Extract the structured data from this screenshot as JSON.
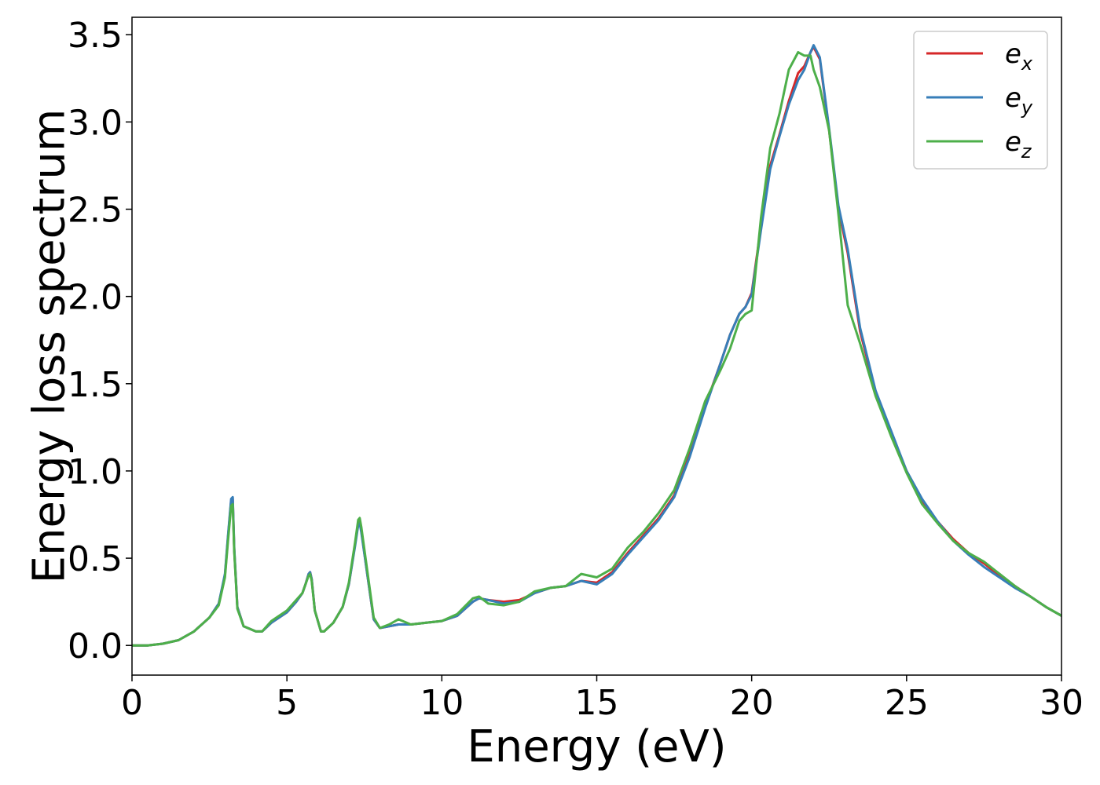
{
  "chart_data": {
    "type": "line",
    "title": "",
    "xlabel": "Energy (eV)",
    "ylabel": "Energy loss spectrum",
    "xlim": [
      0,
      30
    ],
    "ylim": [
      -0.17,
      3.6
    ],
    "xticks": [
      0,
      5,
      10,
      15,
      20,
      25,
      30
    ],
    "yticks": [
      0.0,
      0.5,
      1.0,
      1.5,
      2.0,
      2.5,
      3.0,
      3.5
    ],
    "xtick_labels": [
      "0",
      "5",
      "10",
      "15",
      "20",
      "25",
      "30"
    ],
    "ytick_labels": [
      "0.0",
      "0.5",
      "1.0",
      "1.5",
      "2.0",
      "2.5",
      "3.0",
      "3.5"
    ],
    "grid": false,
    "legend": "top-right",
    "x": [
      0,
      0.5,
      1,
      1.5,
      2,
      2.5,
      2.8,
      3,
      3.1,
      3.2,
      3.25,
      3.3,
      3.4,
      3.6,
      4,
      4.2,
      4.5,
      5,
      5.3,
      5.5,
      5.6,
      5.7,
      5.75,
      5.8,
      5.9,
      6.1,
      6.2,
      6.5,
      6.8,
      7,
      7.2,
      7.3,
      7.35,
      7.4,
      7.6,
      7.8,
      8,
      8.3,
      8.6,
      9,
      9.5,
      10,
      10.5,
      11,
      11.2,
      11.5,
      12,
      12.5,
      13,
      13.5,
      14,
      14.5,
      15,
      15.5,
      16,
      16.5,
      17,
      17.5,
      18,
      18.5,
      19,
      19.3,
      19.6,
      19.8,
      20,
      20.3,
      20.6,
      20.9,
      21.2,
      21.5,
      21.7,
      21.9,
      22,
      22.2,
      22.5,
      22.8,
      23.1,
      23.5,
      24,
      24.5,
      25,
      25.5,
      26,
      26.5,
      27,
      27.5,
      28,
      28.5,
      29,
      29.5,
      30
    ],
    "series": [
      {
        "name": "e_x",
        "label_base": "e",
        "label_sub": "x",
        "color": "#d62728",
        "values": [
          0,
          0,
          0.01,
          0.03,
          0.08,
          0.16,
          0.24,
          0.4,
          0.62,
          0.83,
          0.84,
          0.55,
          0.22,
          0.11,
          0.08,
          0.08,
          0.13,
          0.19,
          0.25,
          0.3,
          0.35,
          0.41,
          0.42,
          0.38,
          0.2,
          0.08,
          0.08,
          0.13,
          0.22,
          0.35,
          0.58,
          0.7,
          0.71,
          0.66,
          0.4,
          0.15,
          0.1,
          0.11,
          0.12,
          0.12,
          0.13,
          0.14,
          0.17,
          0.25,
          0.27,
          0.26,
          0.25,
          0.26,
          0.3,
          0.33,
          0.34,
          0.37,
          0.36,
          0.42,
          0.53,
          0.63,
          0.73,
          0.86,
          1.1,
          1.37,
          1.62,
          1.78,
          1.9,
          1.94,
          2.02,
          2.4,
          2.75,
          2.93,
          3.12,
          3.28,
          3.32,
          3.4,
          3.43,
          3.36,
          2.95,
          2.5,
          2.25,
          1.8,
          1.45,
          1.22,
          1.0,
          0.83,
          0.71,
          0.61,
          0.53,
          0.47,
          0.4,
          0.34,
          0.28,
          0.22,
          0.17
        ]
      },
      {
        "name": "e_y",
        "label_base": "e",
        "label_sub": "y",
        "color": "#377eb8",
        "values": [
          0,
          0,
          0.01,
          0.03,
          0.08,
          0.16,
          0.24,
          0.41,
          0.63,
          0.84,
          0.85,
          0.56,
          0.22,
          0.11,
          0.08,
          0.08,
          0.13,
          0.19,
          0.25,
          0.3,
          0.35,
          0.41,
          0.42,
          0.38,
          0.2,
          0.08,
          0.08,
          0.13,
          0.22,
          0.35,
          0.57,
          0.69,
          0.7,
          0.65,
          0.4,
          0.15,
          0.1,
          0.11,
          0.12,
          0.12,
          0.13,
          0.14,
          0.17,
          0.25,
          0.27,
          0.26,
          0.24,
          0.25,
          0.3,
          0.33,
          0.34,
          0.37,
          0.35,
          0.41,
          0.52,
          0.62,
          0.72,
          0.85,
          1.08,
          1.36,
          1.62,
          1.78,
          1.9,
          1.94,
          2.01,
          2.38,
          2.73,
          2.92,
          3.1,
          3.24,
          3.3,
          3.4,
          3.44,
          3.37,
          2.96,
          2.52,
          2.27,
          1.82,
          1.46,
          1.23,
          1.0,
          0.84,
          0.71,
          0.6,
          0.52,
          0.45,
          0.39,
          0.33,
          0.28,
          0.22,
          0.17
        ]
      },
      {
        "name": "e_z",
        "label_base": "e",
        "label_sub": "z",
        "color": "#4daf4a",
        "values": [
          0,
          0,
          0.01,
          0.03,
          0.08,
          0.16,
          0.23,
          0.39,
          0.6,
          0.8,
          0.81,
          0.54,
          0.21,
          0.11,
          0.08,
          0.08,
          0.14,
          0.2,
          0.26,
          0.3,
          0.35,
          0.4,
          0.41,
          0.37,
          0.2,
          0.08,
          0.08,
          0.13,
          0.22,
          0.36,
          0.59,
          0.72,
          0.73,
          0.68,
          0.42,
          0.16,
          0.1,
          0.12,
          0.15,
          0.12,
          0.13,
          0.14,
          0.18,
          0.27,
          0.28,
          0.24,
          0.23,
          0.25,
          0.31,
          0.33,
          0.34,
          0.41,
          0.39,
          0.44,
          0.56,
          0.65,
          0.76,
          0.89,
          1.13,
          1.4,
          1.58,
          1.7,
          1.86,
          1.9,
          1.92,
          2.45,
          2.85,
          3.05,
          3.3,
          3.4,
          3.38,
          3.38,
          3.3,
          3.2,
          2.95,
          2.47,
          1.95,
          1.73,
          1.43,
          1.2,
          0.99,
          0.81,
          0.7,
          0.6,
          0.53,
          0.48,
          0.41,
          0.34,
          0.28,
          0.22,
          0.17
        ]
      }
    ]
  }
}
